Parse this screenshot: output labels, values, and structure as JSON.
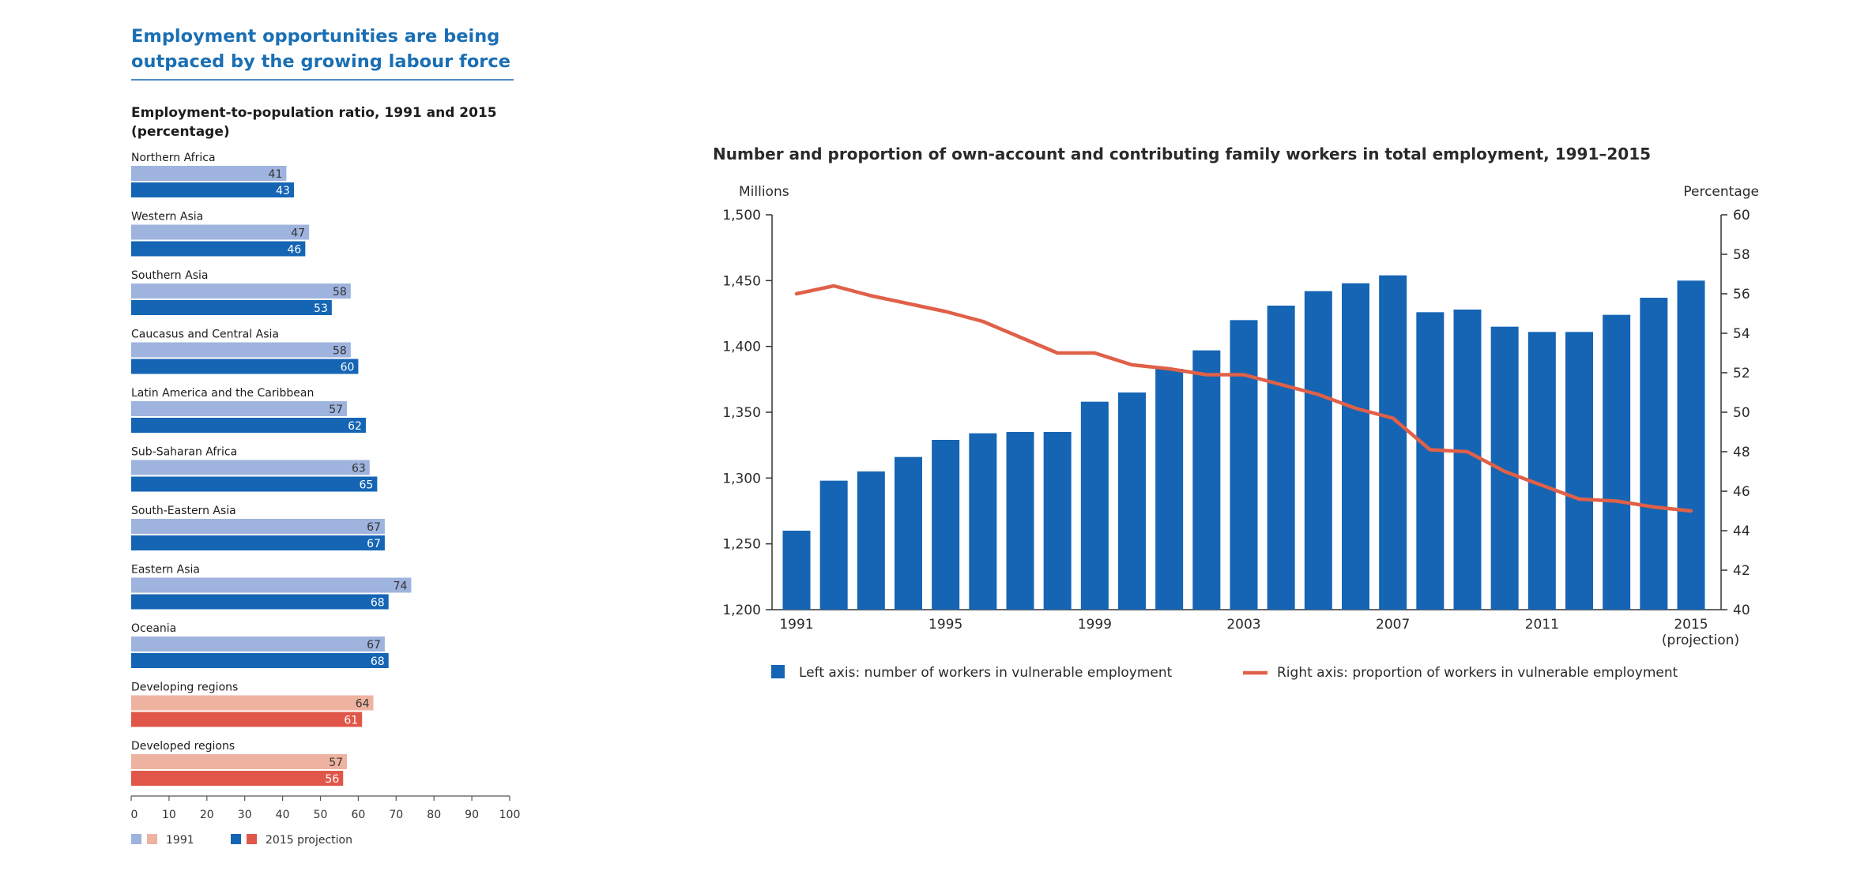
{
  "heading": {
    "line1": "Employment opportunities are being",
    "line2": "outpaced by the growing labour force"
  },
  "colors": {
    "light_blue": "#9eb3dd",
    "dark_blue": "#1565b4",
    "light_red": "#eeb3a0",
    "dark_red": "#e0574a",
    "line_red": "#e06048"
  },
  "chart_data": [
    {
      "type": "bar",
      "orientation": "horizontal",
      "title_line1": "Employment-to-population ratio, 1991 and 2015",
      "title_line2": "(percentage)",
      "xlim": [
        0,
        100
      ],
      "xticks": [
        "0",
        "10",
        "20",
        "30",
        "40",
        "50",
        "60",
        "70",
        "80",
        "90",
        "100"
      ],
      "categories": [
        {
          "name": "Northern Africa",
          "v1991": 41,
          "v2015": 43,
          "group": "blue"
        },
        {
          "name": "Western Asia",
          "v1991": 47,
          "v2015": 46,
          "group": "blue"
        },
        {
          "name": "Southern Asia",
          "v1991": 58,
          "v2015": 53,
          "group": "blue"
        },
        {
          "name": "Caucasus and Central Asia",
          "v1991": 58,
          "v2015": 60,
          "group": "blue"
        },
        {
          "name": "Latin America and the Caribbean",
          "v1991": 57,
          "v2015": 62,
          "group": "blue"
        },
        {
          "name": "Sub-Saharan Africa",
          "v1991": 63,
          "v2015": 65,
          "group": "blue"
        },
        {
          "name": "South-Eastern Asia",
          "v1991": 67,
          "v2015": 67,
          "group": "blue"
        },
        {
          "name": "Eastern Asia",
          "v1991": 74,
          "v2015": 68,
          "group": "blue"
        },
        {
          "name": "Oceania",
          "v1991": 67,
          "v2015": 68,
          "group": "blue"
        },
        {
          "name": "Developing regions",
          "v1991": 64,
          "v2015": 61,
          "group": "red"
        },
        {
          "name": "Developed regions",
          "v1991": 57,
          "v2015": 56,
          "group": "red"
        }
      ],
      "legend": {
        "series1": "1991",
        "series2": "2015 projection"
      }
    },
    {
      "type": "bar+line",
      "title": "Number and proportion of own-account and contributing family workers in total employment, 1991–2015",
      "ylabel_left": "Millions",
      "ylabel_right": "Percentage",
      "ylim_left": [
        1200,
        1500
      ],
      "ylim_right": [
        40,
        60
      ],
      "yticks_left": [
        "1,200",
        "1,250",
        "1,300",
        "1,350",
        "1,400",
        "1,450",
        "1,500"
      ],
      "yticks_right": [
        "40",
        "42",
        "44",
        "46",
        "48",
        "50",
        "52",
        "54",
        "56",
        "58",
        "60"
      ],
      "x": [
        1991,
        1992,
        1993,
        1994,
        1995,
        1996,
        1997,
        1998,
        1999,
        2000,
        2001,
        2002,
        2003,
        2004,
        2005,
        2006,
        2007,
        2008,
        2009,
        2010,
        2011,
        2012,
        2013,
        2014,
        2015
      ],
      "xtick_labels": [
        {
          "year": 1991,
          "label": "1991"
        },
        {
          "year": 1995,
          "label": "1995"
        },
        {
          "year": 1999,
          "label": "1999"
        },
        {
          "year": 2003,
          "label": "2003"
        },
        {
          "year": 2007,
          "label": "2007"
        },
        {
          "year": 2011,
          "label": "2011"
        },
        {
          "year": 2015,
          "label": "2015",
          "sub": "(projection)"
        }
      ],
      "series": [
        {
          "name": "Left axis: number of workers in vulnerable employment",
          "kind": "bar",
          "axis": "left",
          "values": [
            1260,
            1298,
            1305,
            1316,
            1329,
            1334,
            1335,
            1335,
            1358,
            1365,
            1383,
            1397,
            1420,
            1431,
            1442,
            1448,
            1454,
            1426,
            1428,
            1415,
            1411,
            1411,
            1424,
            1437,
            1450
          ]
        },
        {
          "name": "Right axis: proportion of workers in vulnerable employment",
          "kind": "line",
          "axis": "right",
          "values": [
            56.0,
            56.4,
            55.9,
            55.5,
            55.1,
            54.6,
            53.8,
            53.0,
            53.0,
            52.4,
            52.2,
            51.9,
            51.9,
            51.4,
            50.9,
            50.2,
            49.7,
            48.1,
            48.0,
            47.0,
            46.3,
            45.6,
            45.5,
            45.2,
            45.0
          ]
        }
      ]
    }
  ]
}
